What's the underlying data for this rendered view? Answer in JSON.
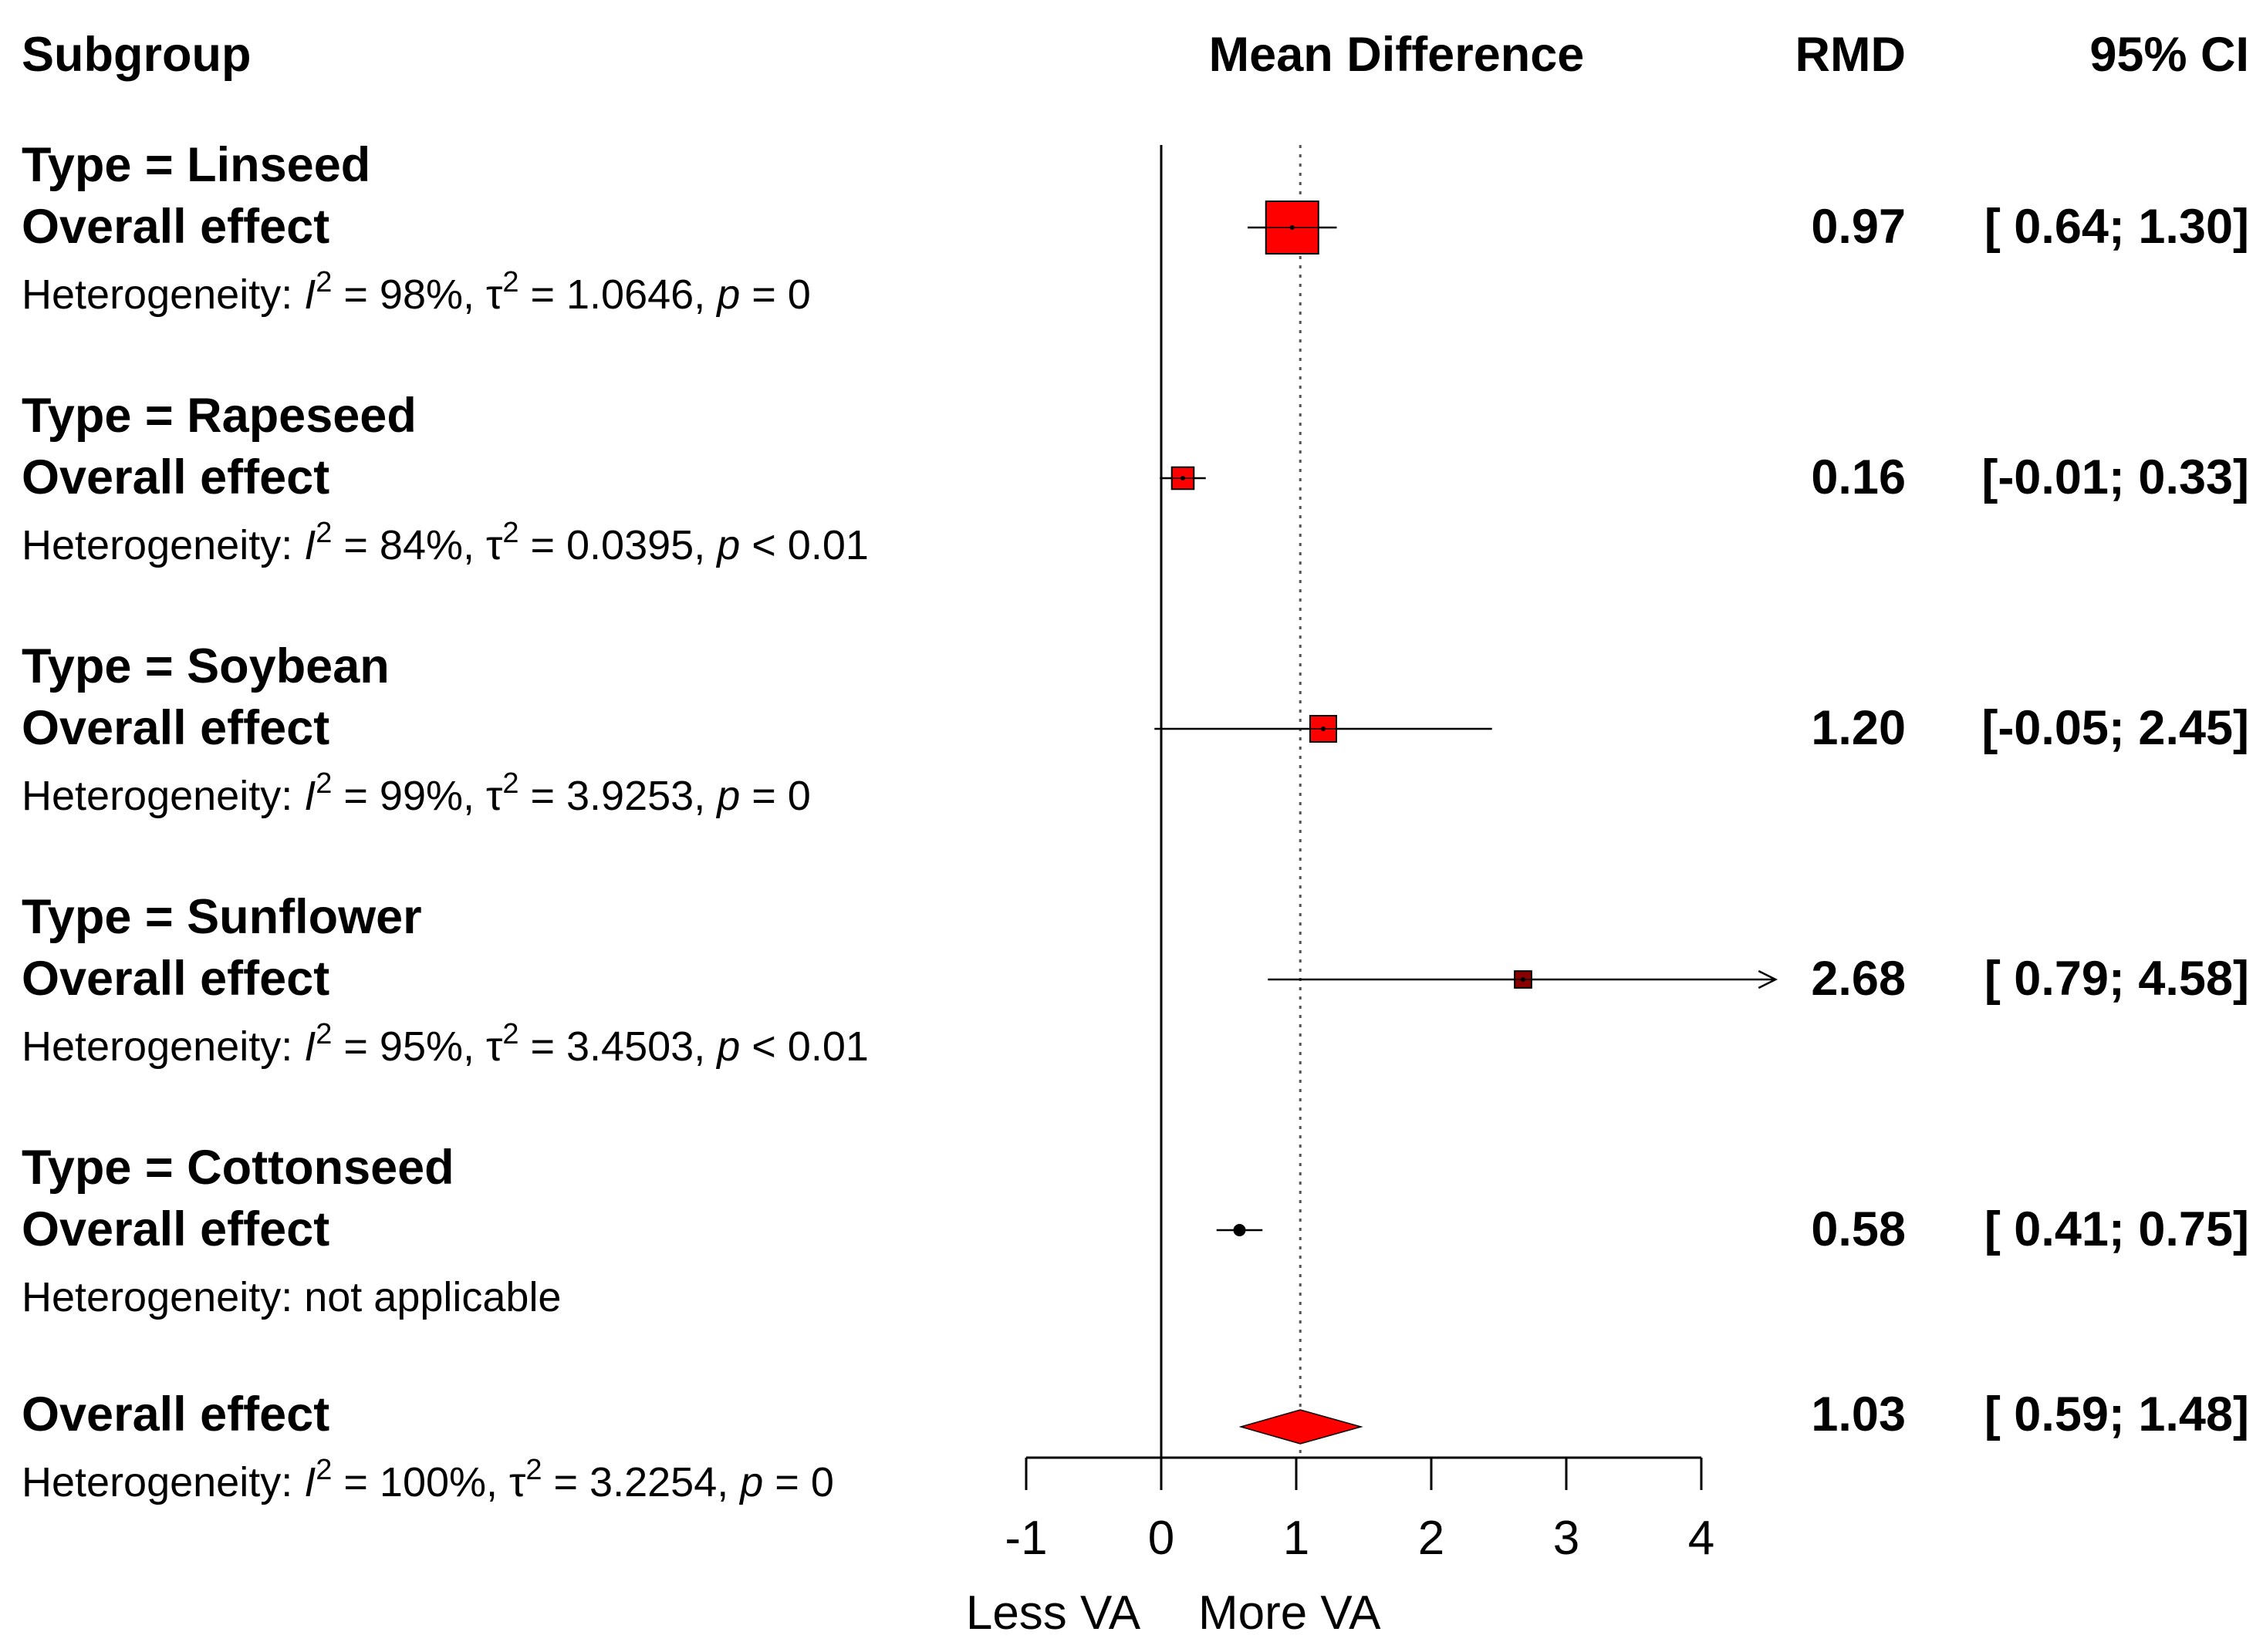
{
  "headers": {
    "subgroup": "Subgroup",
    "mean_difference": "Mean Difference",
    "rmd": "RMD",
    "ci": "95% CI"
  },
  "chart_data": {
    "type": "forest",
    "xlim": [
      -1,
      4
    ],
    "xticks": [
      "-1",
      "0",
      "1",
      "2",
      "3",
      "4"
    ],
    "tick_values": [
      -1,
      0,
      1,
      2,
      3,
      4
    ],
    "null_line": 0,
    "overall_line": 1.03,
    "xlabel_left": "Less VA",
    "xlabel_right": "More VA",
    "colors": {
      "box": "#ff0000",
      "box_dark": "#8b0000",
      "diamond": "#ff0000",
      "line": "#000000"
    },
    "subgroups": [
      {
        "label": "Type = Linseed",
        "effect_label": "Overall effect",
        "het_prefix": "Heterogeneity: ",
        "het_i2": "98%",
        "het_tau2": "1.0646",
        "het_p_op": "=",
        "het_p": "0",
        "rmd": 0.97,
        "lower": 0.64,
        "upper": 1.3,
        "rmd_text": "0.97",
        "ci_text": "[ 0.64;  1.30]",
        "weight": 1.0
      },
      {
        "label": "Type = Rapeseed",
        "effect_label": "Overall effect",
        "het_prefix": "Heterogeneity: ",
        "het_i2": "84%",
        "het_tau2": "0.0395",
        "het_p_op": "<",
        "het_p": "0.01",
        "rmd": 0.16,
        "lower": -0.01,
        "upper": 0.33,
        "rmd_text": "0.16",
        "ci_text": "[-0.01;  0.33]",
        "weight": 0.42
      },
      {
        "label": "Type = Soybean",
        "effect_label": "Overall effect",
        "het_prefix": "Heterogeneity: ",
        "het_i2": "99%",
        "het_tau2": "3.9253",
        "het_p_op": "=",
        "het_p": "0",
        "rmd": 1.2,
        "lower": -0.05,
        "upper": 2.45,
        "rmd_text": "1.20",
        "ci_text": "[-0.05;  2.45]",
        "weight": 0.5
      },
      {
        "label": "Type = Sunflower",
        "effect_label": "Overall effect",
        "het_prefix": "Heterogeneity: ",
        "het_i2": "95%",
        "het_tau2": "3.4503",
        "het_p_op": "<",
        "het_p": "0.01",
        "rmd": 2.68,
        "lower": 0.79,
        "upper": 4.58,
        "rmd_text": "2.68",
        "ci_text": "[ 0.79;  4.58]",
        "weight": 0.32,
        "dark": true
      },
      {
        "label": "Type = Cottonseed",
        "effect_label": "Overall effect",
        "het_text": "Heterogeneity: not applicable",
        "rmd": 0.58,
        "lower": 0.41,
        "upper": 0.75,
        "rmd_text": "0.58",
        "ci_text": "[ 0.41;  0.75]",
        "weight": 0.12,
        "dot": true
      }
    ],
    "overall": {
      "effect_label": "Overall effect",
      "het_prefix": "Heterogeneity: ",
      "het_i2": "100%",
      "het_tau2": "3.2254",
      "het_p_op": "=",
      "het_p": "0",
      "rmd": 1.03,
      "lower": 0.59,
      "upper": 1.48,
      "rmd_text": "1.03",
      "ci_text": "[ 0.59;  1.48]"
    }
  }
}
